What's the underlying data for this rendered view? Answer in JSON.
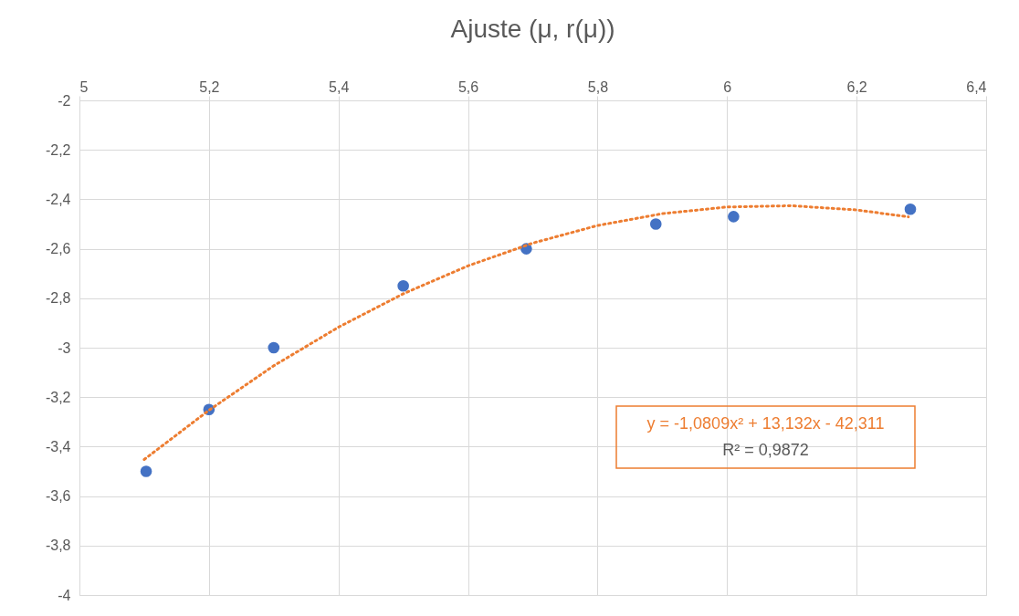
{
  "chart_data": {
    "type": "scatter",
    "title": "Ajuste (μ, r(μ))",
    "x": [
      5.103,
      5.2,
      5.3,
      5.5,
      5.69,
      5.89,
      6.01,
      6.283
    ],
    "series": [
      {
        "color": "#4472c4",
        "marker": "circle",
        "values": [
          -3.5,
          -3.25,
          -3.0,
          -2.75,
          -2.6,
          -2.5,
          -2.47,
          -2.44
        ]
      },
      {
        "type": "line",
        "color": "#ed7d31",
        "line_style": "dotted",
        "marker": "none",
        "x": [
          5.1,
          5.2,
          5.3,
          5.4,
          5.5,
          5.6,
          5.7,
          5.8,
          5.9,
          6.0,
          6.1,
          6.2,
          6.28
        ],
        "values": [
          -3.452,
          -3.253,
          -3.073,
          -2.917,
          -2.782,
          -2.669,
          -2.577,
          -2.506,
          -2.458,
          -2.431,
          -2.426,
          -2.443,
          -2.471
        ]
      }
    ],
    "xlim": [
      5,
      6.4
    ],
    "xticks": [
      5,
      {
        "value": 5.2,
        "label": "5,2"
      },
      {
        "value": 5.4,
        "label": "5,4"
      },
      {
        "value": 5.6,
        "label": "5,6"
      },
      {
        "value": 5.8,
        "label": "5,8"
      },
      6,
      {
        "value": 6.2,
        "label": "6,2"
      },
      {
        "value": 6.4,
        "label": "6,4"
      }
    ],
    "ylim": [
      -4,
      -2
    ],
    "yticks": [
      -2,
      {
        "value": -2.2,
        "label": "-2,2"
      },
      {
        "value": -2.4,
        "label": "-2,4"
      },
      {
        "value": -2.6,
        "label": "-2,6"
      },
      {
        "value": -2.8,
        "label": "-2,8"
      },
      -3,
      {
        "value": -3.2,
        "label": "-3,2"
      },
      {
        "value": -3.4,
        "label": "-3,4"
      },
      {
        "value": -3.6,
        "label": "-3,6"
      },
      {
        "value": -3.8,
        "label": "-3,8"
      },
      -4
    ],
    "annotations": [
      "y = -1,0809x² + 13,132x - 42,311",
      "R² = 0,9872"
    ],
    "grid": true
  }
}
